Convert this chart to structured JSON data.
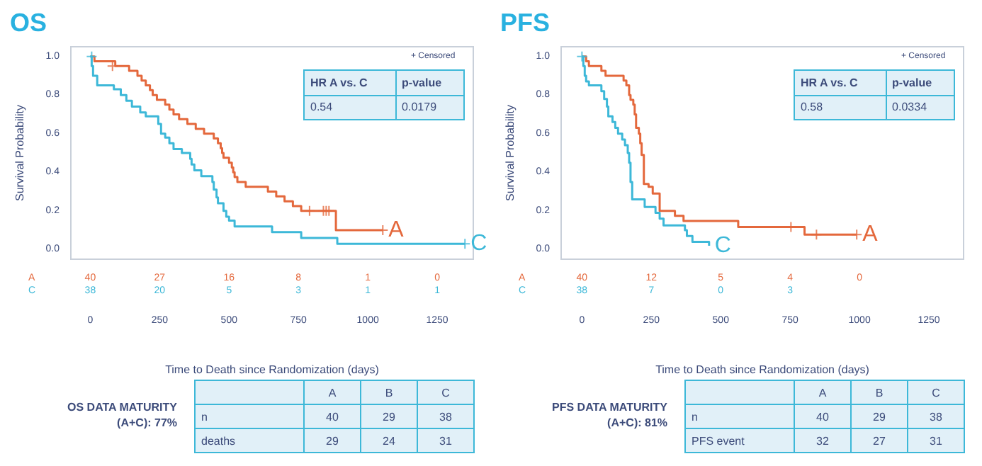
{
  "chart_data": [
    {
      "type": "step",
      "title": "OS",
      "xlabel": "Time to Death since Randomization (days)",
      "ylabel": "Survival Probability",
      "xlim": [
        -70,
        1380
      ],
      "xticks": [
        0,
        250,
        500,
        750,
        1000,
        1250
      ],
      "ylim": [
        -0.05,
        1.05
      ],
      "yticks": [
        {
          "value": 0,
          "label": "0.0"
        },
        {
          "value": 0.2,
          "label": "0.2"
        },
        {
          "value": 0.4,
          "label": "0.4"
        },
        {
          "value": 0.6,
          "label": "0.6"
        },
        {
          "value": 0.8,
          "label": "0.8"
        },
        {
          "value": 1,
          "label": "1.0"
        }
      ],
      "series": [
        {
          "name": "A",
          "color": "#e4683c",
          "x": [
            0,
            15,
            90,
            140,
            170,
            185,
            200,
            215,
            225,
            240,
            270,
            285,
            300,
            320,
            350,
            380,
            410,
            445,
            460,
            470,
            475,
            480,
            500,
            510,
            515,
            520,
            530,
            560,
            640,
            670,
            700,
            730,
            760,
            885,
            1054
          ],
          "values": [
            1,
            0.975,
            0.95,
            0.925,
            0.9,
            0.875,
            0.85,
            0.825,
            0.8,
            0.775,
            0.75,
            0.725,
            0.7,
            0.675,
            0.65,
            0.625,
            0.6,
            0.575,
            0.55,
            0.525,
            0.5,
            0.475,
            0.45,
            0.425,
            0.4,
            0.375,
            0.35,
            0.325,
            0.3,
            0.275,
            0.25,
            0.225,
            0.2,
            0.1,
            0.1
          ]
        },
        {
          "name": "C",
          "color": "#3db8d8",
          "x": [
            0,
            5,
            10,
            25,
            85,
            110,
            130,
            150,
            180,
            200,
            245,
            255,
            270,
            285,
            300,
            330,
            360,
            365,
            375,
            400,
            440,
            445,
            455,
            460,
            480,
            490,
            500,
            520,
            655,
            760,
            890,
            1350
          ],
          "values": [
            1,
            0.95,
            0.9,
            0.85,
            0.83,
            0.8,
            0.77,
            0.74,
            0.71,
            0.69,
            0.65,
            0.6,
            0.58,
            0.55,
            0.52,
            0.5,
            0.47,
            0.44,
            0.41,
            0.38,
            0.35,
            0.31,
            0.27,
            0.24,
            0.2,
            0.17,
            0.15,
            0.12,
            0.09,
            0.06,
            0.03,
            0.03
          ]
        },
        {
          "type": "scatter",
          "marker": "cross",
          "color": "#e4683c",
          "x": [
            80,
            790,
            840,
            850,
            860,
            1054
          ],
          "values": [
            0.95,
            0.2,
            0.2,
            0.2,
            0.2,
            0.1
          ]
        },
        {
          "type": "scatter",
          "marker": "cross",
          "color": "#3db8d8",
          "x": [
            5,
            1350
          ],
          "values": [
            1,
            0.03
          ]
        }
      ],
      "annotations": [
        "+ Censored",
        "HR A vs. C",
        "p-value",
        "0.54",
        "0.0179",
        "A",
        "40",
        "27",
        "16",
        "8",
        "1",
        "0",
        "C",
        "38",
        "20",
        "5",
        "3",
        "1",
        "1",
        "OS DATA MATURITY",
        "(A+C): 77%",
        "A",
        "B",
        "C",
        "n",
        "40",
        "29",
        "38",
        "deaths",
        "29",
        "24",
        "31"
      ]
    },
    {
      "type": "step",
      "title": "PFS",
      "xlabel": "Time to Death since Randomization (days)",
      "ylabel": "Survival Probability",
      "xlim": [
        -75,
        1375
      ],
      "xticks": [
        0,
        250,
        500,
        750,
        1000,
        1250
      ],
      "ylim": [
        -0.05,
        1.05
      ],
      "yticks": [
        {
          "value": 0,
          "label": "0.0"
        },
        {
          "value": 0.2,
          "label": "0.2"
        },
        {
          "value": 0.4,
          "label": "0.4"
        },
        {
          "value": 0.6,
          "label": "0.6"
        },
        {
          "value": 0.8,
          "label": "0.8"
        },
        {
          "value": 1,
          "label": "1.0"
        }
      ],
      "series": [
        {
          "name": "A",
          "color": "#e4683c",
          "x": [
            0,
            15,
            25,
            70,
            85,
            150,
            160,
            170,
            175,
            185,
            190,
            195,
            205,
            210,
            215,
            223,
            240,
            255,
            280,
            335,
            366,
            563,
            802,
            990
          ],
          "values": [
            1,
            0.975,
            0.95,
            0.925,
            0.9,
            0.875,
            0.85,
            0.8,
            0.775,
            0.75,
            0.7,
            0.63,
            0.6,
            0.55,
            0.49,
            0.34,
            0.325,
            0.29,
            0.2,
            0.175,
            0.148,
            0.117,
            0.077,
            0.077
          ]
        },
        {
          "name": "C",
          "color": "#3db8d8",
          "x": [
            0,
            5,
            10,
            15,
            25,
            70,
            80,
            90,
            95,
            110,
            120,
            130,
            145,
            155,
            165,
            170,
            175,
            181,
            226,
            265,
            280,
            294,
            371,
            378,
            398,
            458
          ],
          "values": [
            1,
            0.95,
            0.9,
            0.87,
            0.85,
            0.82,
            0.78,
            0.74,
            0.69,
            0.66,
            0.63,
            0.6,
            0.57,
            0.54,
            0.5,
            0.45,
            0.35,
            0.26,
            0.22,
            0.19,
            0.16,
            0.125,
            0.1,
            0.07,
            0.04,
            0.02
          ]
        },
        {
          "type": "scatter",
          "marker": "cross",
          "color": "#e4683c",
          "x": [
            753,
            845,
            990
          ],
          "values": [
            0.117,
            0.077,
            0.077
          ]
        },
        {
          "type": "scatter",
          "marker": "cross",
          "color": "#3db8d8",
          "x": [
            0
          ],
          "values": [
            1
          ]
        }
      ],
      "annotations": [
        "+ Censored",
        "HR A vs. C",
        "p-value",
        "0.58",
        "0.0334",
        "A",
        "40",
        "12",
        "5",
        "4",
        "0",
        null,
        "C",
        "38",
        "7",
        "0",
        "3",
        null,
        null,
        "PFS DATA MATURITY",
        "(A+C): 81%",
        "A",
        "B",
        "C",
        "n",
        "40",
        "29",
        "38",
        "PFS event",
        "32",
        "27",
        "31"
      ]
    }
  ]
}
